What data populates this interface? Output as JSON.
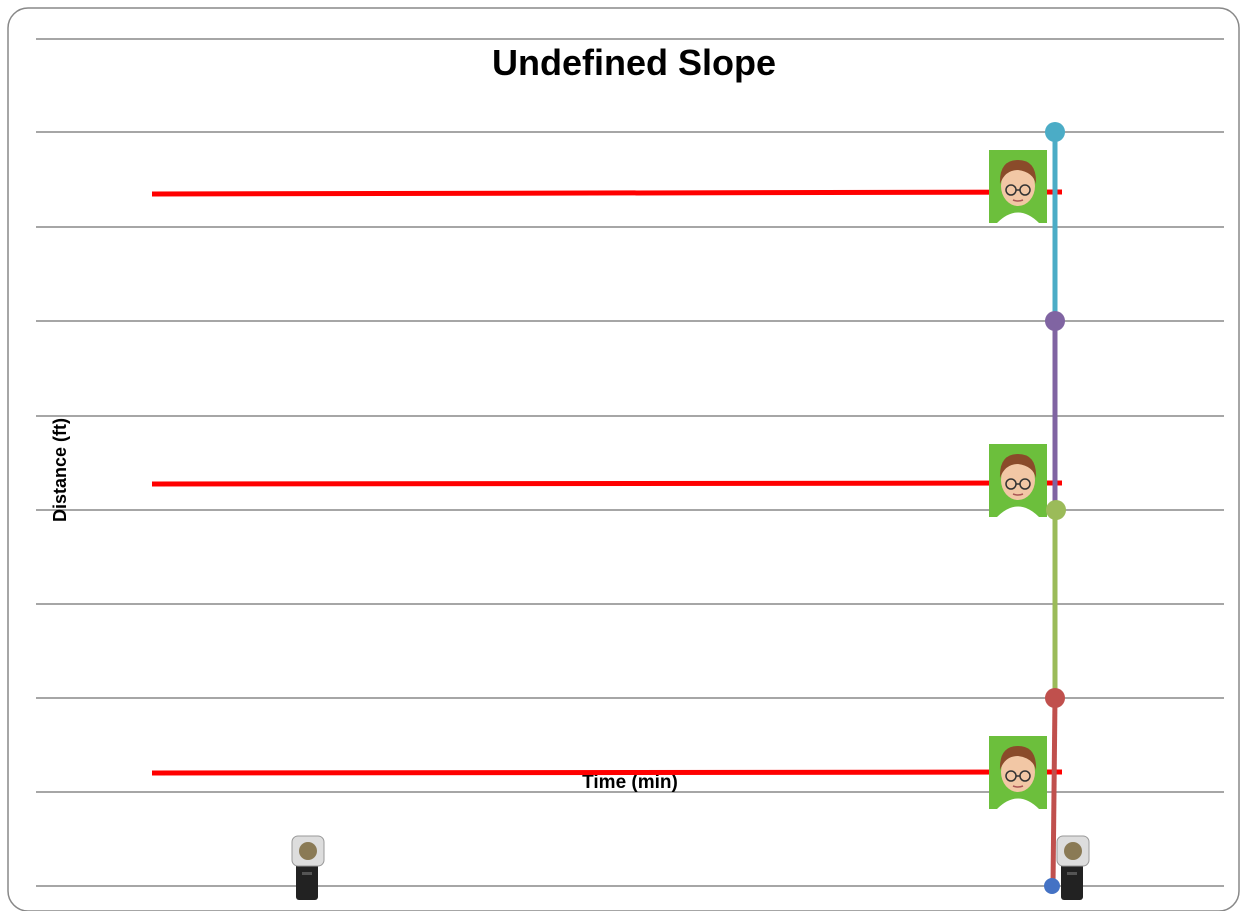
{
  "title": "Undefined Slope",
  "y_axis_label": "Distance (ft)",
  "x_axis_label": "Time (min)"
}
